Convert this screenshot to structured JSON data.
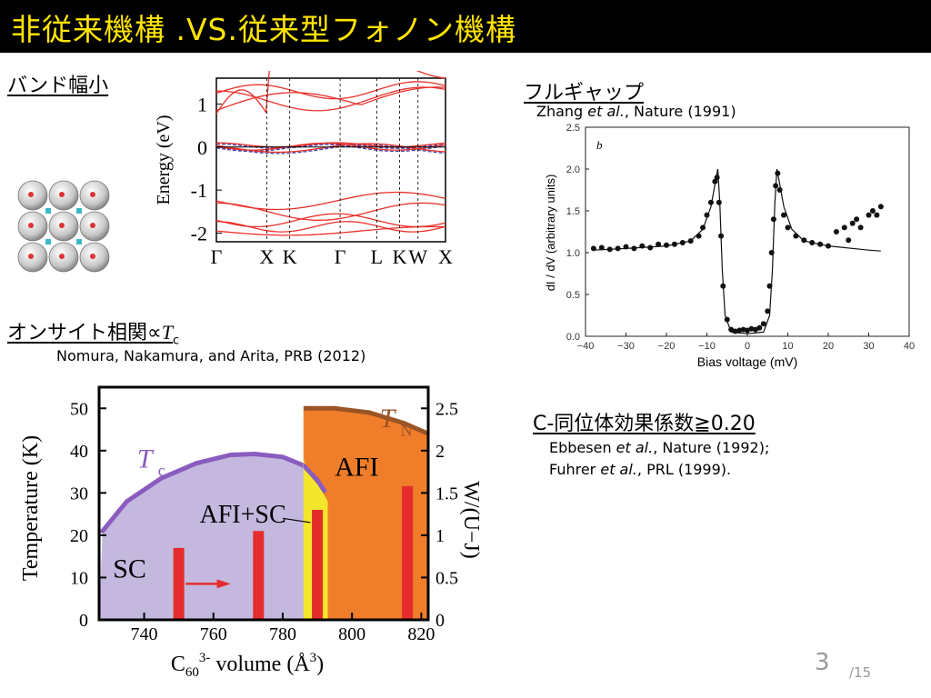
{
  "title": "非従来機構 .VS.従来型フォノン機構",
  "section_band": "バンド幅小",
  "section_onsite": "オンサイト相関∝",
  "onsite_T": "T",
  "onsite_sub": "c",
  "ref_onsite": "Nomura, Nakamura, and Arita, PRB (2012)",
  "section_gap": "フルギャップ",
  "ref_gap": {
    "author": "Zhang ",
    "etal": "et al.",
    "rest": ", Nature (1991)"
  },
  "section_isotope": "C-同位体効果係数≧0.20",
  "ref_iso1": {
    "author": "Ebbesen ",
    "etal": "et al.",
    "rest": ", Nature (1992);"
  },
  "ref_iso2": {
    "author": "Fuhrer ",
    "etal": "et al.",
    "rest": ", PRL (1999)."
  },
  "page_number": "3",
  "page_total": "/15",
  "colors": {
    "title_bg": "#000000",
    "title_text": "#ffe500",
    "band_red": "#e8302a",
    "band_blue": "#4444aa"
  },
  "chart_data": [
    {
      "type": "line",
      "name": "band structure",
      "ylabel": "Energy  (eV)",
      "ylim": [
        -2.2,
        1.6
      ],
      "yticks": [
        "1",
        "0",
        "-1",
        "-2"
      ],
      "ytick_values": [
        1,
        0,
        -1,
        -2
      ],
      "kpoints": [
        "Γ",
        "X",
        "K",
        "Γ",
        "L",
        "K",
        "W",
        "X"
      ],
      "kpoint_positions": [
        0,
        0.22,
        0.32,
        0.54,
        0.7,
        0.8,
        0.88,
        1.0
      ]
    },
    {
      "type": "scatter",
      "name": "tunneling spectrum",
      "panel_label": "b",
      "xlabel": "Bias  voltage (mV)",
      "ylabel": "dI / dV (arbitrary units)",
      "xlim": [
        -40,
        40
      ],
      "ylim": [
        0,
        2.5
      ],
      "xticks": [
        "−40",
        "−30",
        "−20",
        "−10",
        "0",
        "10",
        "20",
        "30",
        "40"
      ],
      "xtick_values": [
        -40,
        -30,
        -20,
        -10,
        0,
        10,
        20,
        30,
        40
      ],
      "yticks": [
        "0.0",
        "0.5",
        "1.0",
        "1.5",
        "2.0",
        "2.5"
      ],
      "ytick_values": [
        0,
        0.5,
        1,
        1.5,
        2,
        2.5
      ],
      "points": [
        [
          -38,
          1.05
        ],
        [
          -36,
          1.06
        ],
        [
          -34,
          1.04
        ],
        [
          -32,
          1.05
        ],
        [
          -30,
          1.07
        ],
        [
          -28,
          1.05
        ],
        [
          -26,
          1.08
        ],
        [
          -24,
          1.06
        ],
        [
          -22,
          1.1
        ],
        [
          -20,
          1.09
        ],
        [
          -18,
          1.1
        ],
        [
          -16,
          1.12
        ],
        [
          -14,
          1.14
        ],
        [
          -12,
          1.2
        ],
        [
          -11,
          1.3
        ],
        [
          -10,
          1.45
        ],
        [
          -9,
          1.6
        ],
        [
          -8,
          1.85
        ],
        [
          -7.5,
          1.9
        ],
        [
          -7,
          1.6
        ],
        [
          -6.5,
          1.2
        ],
        [
          -6,
          0.6
        ],
        [
          -5,
          0.2
        ],
        [
          -4,
          0.08
        ],
        [
          -3,
          0.06
        ],
        [
          -2,
          0.07
        ],
        [
          -1,
          0.08
        ],
        [
          0,
          0.07
        ],
        [
          1,
          0.09
        ],
        [
          2,
          0.08
        ],
        [
          3,
          0.1
        ],
        [
          4,
          0.15
        ],
        [
          5,
          0.3
        ],
        [
          5.5,
          0.6
        ],
        [
          6,
          1.0
        ],
        [
          6.5,
          1.4
        ],
        [
          7,
          1.8
        ],
        [
          7.5,
          1.95
        ],
        [
          8,
          1.75
        ],
        [
          9,
          1.45
        ],
        [
          10,
          1.3
        ],
        [
          12,
          1.2
        ],
        [
          14,
          1.15
        ],
        [
          16,
          1.12
        ],
        [
          18,
          1.1
        ],
        [
          20,
          1.08
        ],
        [
          22,
          1.25
        ],
        [
          24,
          1.3
        ],
        [
          25,
          1.15
        ],
        [
          26,
          1.35
        ],
        [
          27,
          1.4
        ],
        [
          28,
          1.3
        ],
        [
          30,
          1.45
        ],
        [
          31,
          1.5
        ],
        [
          32,
          1.45
        ],
        [
          33,
          1.55
        ]
      ],
      "fit_curve": [
        [
          -38,
          1.03
        ],
        [
          -30,
          1.05
        ],
        [
          -20,
          1.08
        ],
        [
          -14,
          1.14
        ],
        [
          -11,
          1.28
        ],
        [
          -9,
          1.55
        ],
        [
          -8,
          1.82
        ],
        [
          -7.3,
          2.0
        ],
        [
          -6.8,
          1.6
        ],
        [
          -6.2,
          0.8
        ],
        [
          -5.5,
          0.25
        ],
        [
          -4,
          0.05
        ],
        [
          0,
          0.03
        ],
        [
          4,
          0.05
        ],
        [
          5.5,
          0.25
        ],
        [
          6.2,
          0.8
        ],
        [
          6.8,
          1.6
        ],
        [
          7.3,
          2.0
        ],
        [
          8,
          1.82
        ],
        [
          9,
          1.55
        ],
        [
          11,
          1.28
        ],
        [
          14,
          1.14
        ],
        [
          20,
          1.08
        ],
        [
          30,
          1.03
        ],
        [
          33,
          1.02
        ]
      ]
    },
    {
      "type": "area",
      "name": "phase diagram",
      "xlabel": "C",
      "xlabel_sub": "60",
      "xlabel_sup": "3-",
      "xlabel_rest": " volume (Å",
      "xlabel_sup2": "3",
      "xlabel_end": ")",
      "ylabel": "Temperature  (K)",
      "ylabel_right": "W/(U−J)",
      "xlim": [
        727,
        822
      ],
      "ylim": [
        0,
        55
      ],
      "xticks": [
        "740",
        "760",
        "780",
        "800",
        "820"
      ],
      "xtick_values": [
        740,
        760,
        780,
        800,
        820
      ],
      "yticks": [
        "0",
        "10",
        "20",
        "30",
        "40",
        "50"
      ],
      "ytick_values": [
        0,
        10,
        20,
        30,
        40,
        50
      ],
      "yticks_right": [
        "0",
        "0.5",
        "1",
        "1.5",
        "2",
        "2.5"
      ],
      "ytick_right_values": [
        0,
        0.5,
        1,
        1.5,
        2,
        2.5
      ],
      "ylim_right": [
        0,
        2.75
      ],
      "regions": [
        "SC",
        "AFI+SC",
        "AFI"
      ],
      "tc_label": "T",
      "tc_sub": "c",
      "tn_label": "T",
      "tn_sub": "N",
      "tc_curve": [
        [
          728,
          21
        ],
        [
          735,
          28
        ],
        [
          745,
          33.5
        ],
        [
          755,
          37
        ],
        [
          765,
          39
        ],
        [
          772,
          39.2
        ],
        [
          780,
          38.5
        ],
        [
          786,
          36.5
        ],
        [
          790,
          33
        ],
        [
          792,
          30.5
        ]
      ],
      "tn_curve": [
        [
          786,
          50
        ],
        [
          795,
          50
        ],
        [
          805,
          49
        ],
        [
          815,
          46.5
        ],
        [
          822,
          44
        ]
      ],
      "afi_sc_boundary": [
        [
          786,
          38
        ],
        [
          787,
          33
        ],
        [
          789,
          31
        ]
      ],
      "bandwidth_bars": [
        {
          "x": 750,
          "value": 0.85
        },
        {
          "x": 773,
          "value": 1.05
        },
        {
          "x": 790,
          "value": 1.3
        },
        {
          "x": 816,
          "value": 1.58
        }
      ]
    }
  ]
}
